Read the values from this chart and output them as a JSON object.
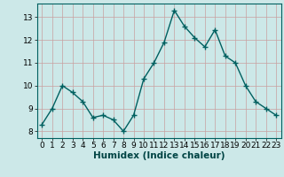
{
  "x": [
    0,
    1,
    2,
    3,
    4,
    5,
    6,
    7,
    8,
    9,
    10,
    11,
    12,
    13,
    14,
    15,
    16,
    17,
    18,
    19,
    20,
    21,
    22,
    23
  ],
  "y": [
    8.3,
    9.0,
    10.0,
    9.7,
    9.3,
    8.6,
    8.7,
    8.5,
    8.0,
    8.7,
    10.3,
    11.0,
    11.9,
    13.3,
    12.6,
    12.1,
    11.7,
    12.45,
    11.3,
    11.0,
    10.0,
    9.3,
    9.0,
    8.7
  ],
  "xlabel": "Humidex (Indice chaleur)",
  "line_color": "#006060",
  "marker_color": "#006060",
  "bg_color": "#cce8e8",
  "grid_color": "#c8a0a0",
  "xlim": [
    -0.5,
    23.5
  ],
  "ylim": [
    7.7,
    13.6
  ],
  "yticks": [
    8,
    9,
    10,
    11,
    12,
    13
  ],
  "xtick_labels": [
    "0",
    "1",
    "2",
    "3",
    "4",
    "5",
    "6",
    "7",
    "8",
    "9",
    "10",
    "11",
    "12",
    "13",
    "14",
    "15",
    "16",
    "17",
    "18",
    "19",
    "20",
    "21",
    "22",
    "23"
  ],
  "title_color": "#004444",
  "tick_fontsize": 6.5,
  "xlabel_fontsize": 7.5
}
